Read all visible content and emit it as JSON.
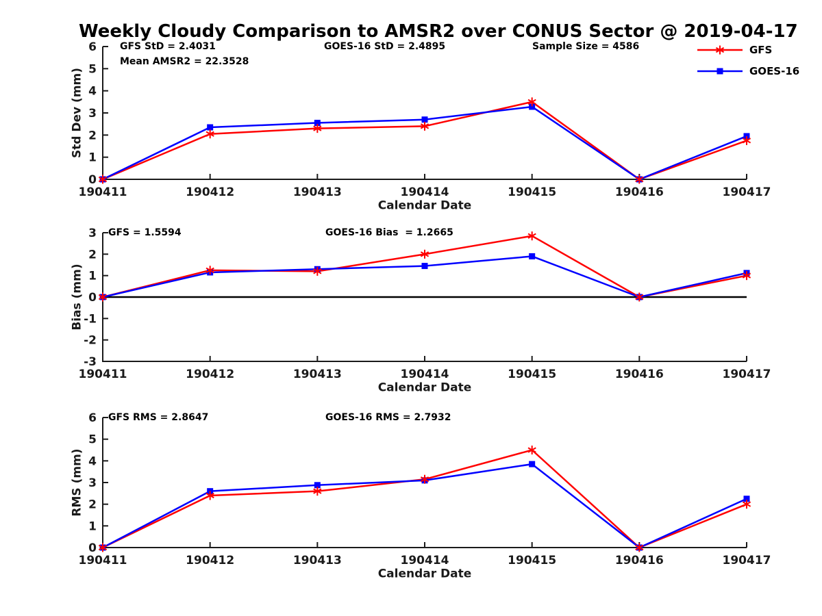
{
  "title": "Weekly Cloudy Comparison to AMSR2 over CONUS Sector @ 2019-04-17",
  "legend": {
    "items": [
      {
        "label": "GFS",
        "color": "#ff0000",
        "marker": "asterisk"
      },
      {
        "label": "GOES-16",
        "color": "#0000ff",
        "marker": "square"
      }
    ]
  },
  "axis_color": "#1a1a1a",
  "chart_data": [
    {
      "type": "line",
      "id": "stddev",
      "ylabel": "Std Dev (mm)",
      "xlabel": "Calendar Date",
      "categories": [
        "190411",
        "190412",
        "190413",
        "190414",
        "190415",
        "190416",
        "190417"
      ],
      "ylim": [
        0,
        6
      ],
      "yticks": [
        0,
        1,
        2,
        3,
        4,
        5,
        6
      ],
      "grid": false,
      "legend_position": "top-right",
      "annotations": [
        "GFS StD = 2.4031",
        "Mean AMSR2 = 22.3528",
        "GOES-16 StD = 2.4895",
        "Sample Size = 4586"
      ],
      "series": [
        {
          "name": "GFS",
          "color": "#ff0000",
          "marker": "asterisk",
          "values": [
            0,
            2.05,
            2.3,
            2.4,
            3.5,
            0,
            1.75
          ]
        },
        {
          "name": "GOES-16",
          "color": "#0000ff",
          "marker": "square",
          "values": [
            0,
            2.35,
            2.55,
            2.7,
            3.28,
            0,
            1.95
          ]
        }
      ]
    },
    {
      "type": "line",
      "id": "bias",
      "ylabel": "Bias (mm)",
      "xlabel": "Calendar Date",
      "categories": [
        "190411",
        "190412",
        "190413",
        "190414",
        "190415",
        "190416",
        "190417"
      ],
      "ylim": [
        -3,
        3
      ],
      "yticks": [
        -3,
        -2,
        -1,
        0,
        1,
        2,
        3
      ],
      "grid": false,
      "zero_line": true,
      "annotations": [
        "GFS = 1.5594",
        "GOES-16 Bias  = 1.2665"
      ],
      "series": [
        {
          "name": "GFS",
          "color": "#ff0000",
          "marker": "asterisk",
          "values": [
            0,
            1.25,
            1.2,
            2.0,
            2.85,
            0,
            1.0
          ]
        },
        {
          "name": "GOES-16",
          "color": "#0000ff",
          "marker": "square",
          "values": [
            0,
            1.15,
            1.3,
            1.45,
            1.9,
            0,
            1.12
          ]
        }
      ]
    },
    {
      "type": "line",
      "id": "rms",
      "ylabel": "RMS (mm)",
      "xlabel": "Calendar Date",
      "categories": [
        "190411",
        "190412",
        "190413",
        "190414",
        "190415",
        "190416",
        "190417"
      ],
      "ylim": [
        0,
        6
      ],
      "yticks": [
        0,
        1,
        2,
        3,
        4,
        5,
        6
      ],
      "grid": false,
      "annotations": [
        "GFS RMS = 2.8647",
        "GOES-16 RMS = 2.7932"
      ],
      "series": [
        {
          "name": "GFS",
          "color": "#ff0000",
          "marker": "asterisk",
          "values": [
            0,
            2.4,
            2.6,
            3.15,
            4.5,
            0,
            2.0
          ]
        },
        {
          "name": "GOES-16",
          "color": "#0000ff",
          "marker": "square",
          "values": [
            0,
            2.6,
            2.88,
            3.1,
            3.85,
            0,
            2.25
          ]
        }
      ]
    }
  ]
}
